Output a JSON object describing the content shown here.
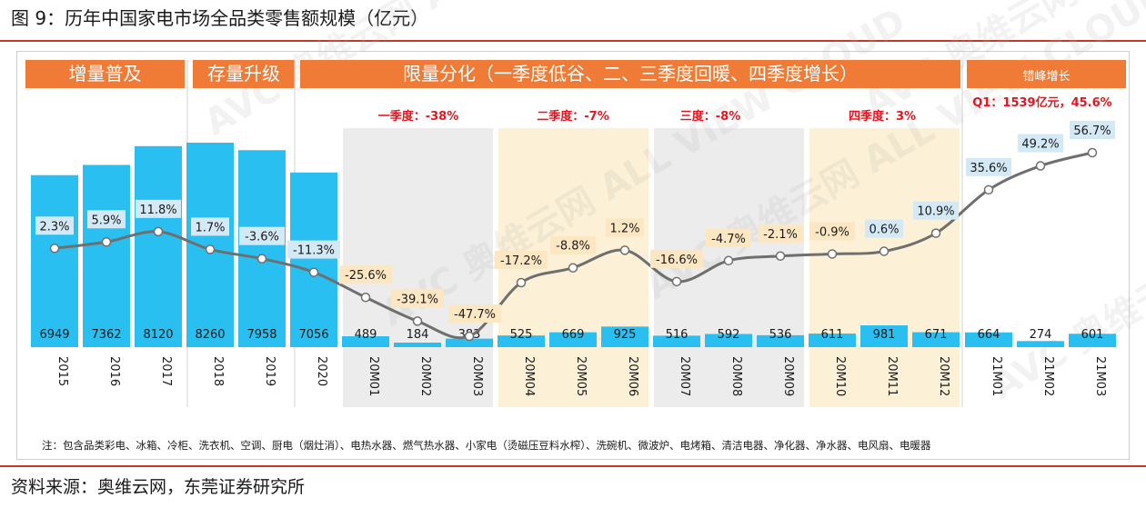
{
  "title": "图 9：历年中国家电市场全品类零售额规模（亿元）",
  "source": "资料来源：奥维云网，东莞证券研究所",
  "chart_data": {
    "type": "bar",
    "categories": [
      "2015",
      "2016",
      "2017",
      "2018",
      "2019",
      "2020",
      "20M01",
      "20M02",
      "20M03",
      "20M04",
      "20M05",
      "20M06",
      "20M07",
      "20M08",
      "20M09",
      "20M10",
      "20M11",
      "20M12",
      "21M01",
      "21M02",
      "21M03"
    ],
    "series": [
      {
        "kind": "bar",
        "values": [
          6949,
          7362,
          8120,
          8260,
          7958,
          7056,
          489,
          184,
          383,
          525,
          669,
          925,
          516,
          592,
          536,
          611,
          981,
          671,
          664,
          274,
          601
        ]
      },
      {
        "kind": "line",
        "values": [
          2.3,
          5.9,
          11.8,
          1.7,
          -3.6,
          -11.3,
          -25.6,
          -39.1,
          -47.7,
          -17.2,
          -8.8,
          1.2,
          -16.6,
          -4.7,
          -2.1,
          -0.9,
          0.6,
          10.9,
          35.6,
          49.2,
          56.7
        ]
      }
    ],
    "line_labels": [
      "2.3%",
      "5.9%",
      "11.8%",
      "1.7%",
      "-3.6%",
      "-11.3%",
      "-25.6%",
      "-39.1%",
      "-47.7%",
      "-17.2%",
      "-8.8%",
      "1.2%",
      "-16.6%",
      "-4.7%",
      "-2.1%",
      "-0.9%",
      "0.6%",
      "10.9%",
      "35.6%",
      "49.2%",
      "56.7%"
    ],
    "phases": [
      {
        "label": "增量普及"
      },
      {
        "label": "存量升级"
      },
      {
        "label": "限量分化（一季度低谷、二、三季度回暖、四季度增长）"
      },
      {
        "label": "错峰增长"
      }
    ],
    "quarter_notes": [
      "一季度：-38%",
      "二季度：-7%",
      "三度：-8%",
      "四季度：3%"
    ],
    "q1_note": "Q1：1539亿元，45.6%",
    "footnote": "注：包含品类彩电、冰箱、冷柜、洗衣机、空调、厨电（烟灶消）、电热水器、燃气热水器、小家电（烫磁压豆料水榨）、洗碗机、微波炉、电烤箱、清洁电器、净化器、净水器、电风扇、电暖器",
    "watermark": "AVC 奥维云网 ALL VIEW CLOUD",
    "colors": {
      "bar": "#29bff1",
      "header": "#ef7b36",
      "line": "#6f6f6f",
      "quarter_gray": "#ececec",
      "quarter_yellow": "#fcf1d6",
      "label_blue": "#d4e9f6",
      "label_yellow": "#fde7c2",
      "note_red": "#e8141e"
    }
  }
}
